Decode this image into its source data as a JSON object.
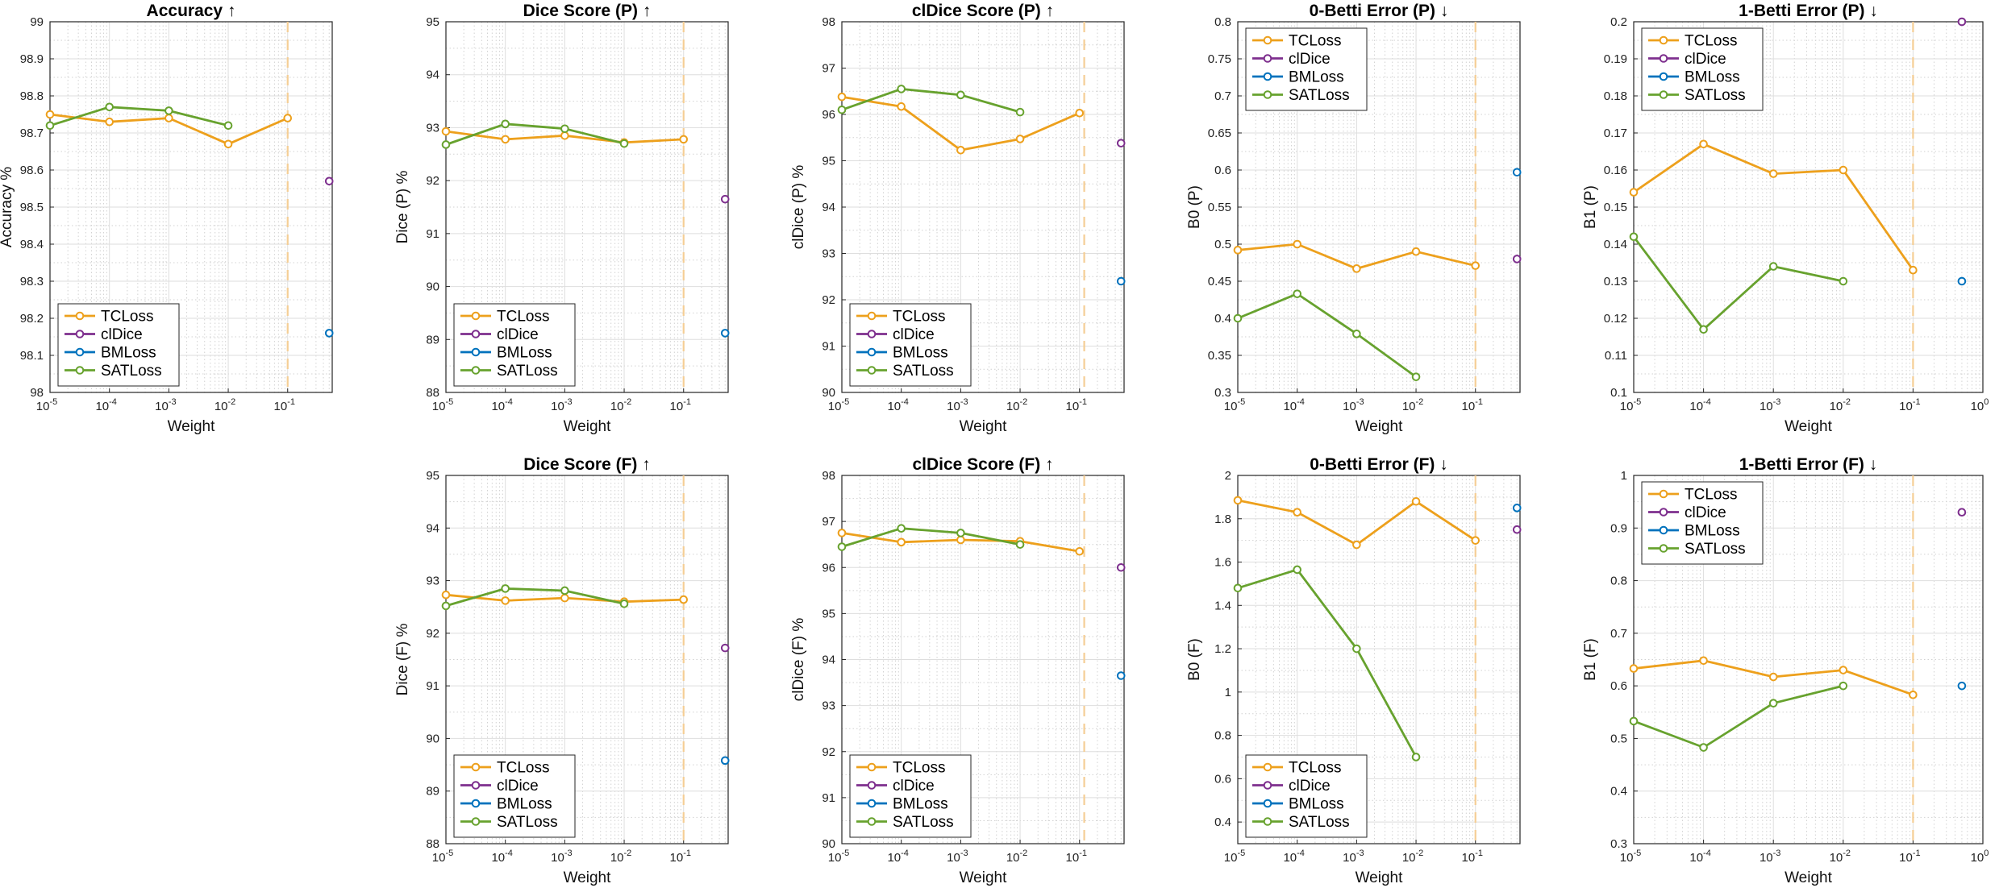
{
  "figure": {
    "series_colors": {
      "TCLoss": "#EDA01C",
      "clDice": "#7E2F8E",
      "BMLoss": "#0072BD",
      "SATLoss": "#67A22E"
    }
  },
  "chart_data": [
    {
      "type": "line",
      "title": "Accuracy ↑",
      "xlabel": "Weight",
      "ylabel": "Accuracy %",
      "xscale": "log",
      "xlim_exp": [
        -5,
        -0.25
      ],
      "x_tick_exponents": [
        -5,
        -4,
        -3,
        -2,
        -1
      ],
      "ylim": [
        98,
        99
      ],
      "yticks": [
        98,
        98.1,
        98.2,
        98.3,
        98.4,
        98.5,
        98.6,
        98.7,
        98.8,
        98.9,
        99
      ],
      "ytick_labels": [
        "98",
        "98.1",
        "98.2",
        "98.3",
        "98.4",
        "98.5",
        "98.6",
        "98.7",
        "98.8",
        "98.9",
        "99"
      ],
      "grid": true,
      "legend_position": "bottom-left",
      "legend": [
        "TCLoss",
        "clDice",
        "BMLoss",
        "SATLoss"
      ],
      "series": [
        {
          "name": "TCLoss",
          "x": [
            1e-05,
            0.0001,
            0.001,
            0.01,
            0.1
          ],
          "y": [
            98.75,
            98.73,
            98.74,
            98.67,
            98.74
          ]
        },
        {
          "name": "clDice",
          "x": [
            0.5
          ],
          "y": [
            98.57
          ]
        },
        {
          "name": "BMLoss",
          "x": [
            0.5
          ],
          "y": [
            98.16
          ]
        },
        {
          "name": "SATLoss",
          "x": [
            1e-05,
            0.0001,
            0.001,
            0.01
          ],
          "y": [
            98.72,
            98.77,
            98.76,
            98.72
          ]
        }
      ],
      "vline_x": 0.1
    },
    {
      "type": "line",
      "title": "Dice Score (P) ↑",
      "xlabel": "Weight",
      "ylabel": "Dice (P) %",
      "xscale": "log",
      "xlim_exp": [
        -5,
        -0.25
      ],
      "x_tick_exponents": [
        -5,
        -4,
        -3,
        -2,
        -1
      ],
      "ylim": [
        88,
        95
      ],
      "yticks": [
        88,
        89,
        90,
        91,
        92,
        93,
        94,
        95
      ],
      "ytick_labels": [
        "88",
        "89",
        "90",
        "91",
        "92",
        "93",
        "94",
        "95"
      ],
      "grid": true,
      "legend_position": "bottom-left",
      "legend": [
        "TCLoss",
        "clDice",
        "BMLoss",
        "SATLoss"
      ],
      "series": [
        {
          "name": "TCLoss",
          "x": [
            1e-05,
            0.0001,
            0.001,
            0.01,
            0.1
          ],
          "y": [
            92.93,
            92.78,
            92.85,
            92.72,
            92.78
          ]
        },
        {
          "name": "clDice",
          "x": [
            0.5
          ],
          "y": [
            91.65
          ]
        },
        {
          "name": "BMLoss",
          "x": [
            0.5
          ],
          "y": [
            89.12
          ]
        },
        {
          "name": "SATLoss",
          "x": [
            1e-05,
            0.0001,
            0.001,
            0.01
          ],
          "y": [
            92.68,
            93.07,
            92.98,
            92.7
          ]
        }
      ],
      "vline_x": 0.1
    },
    {
      "type": "line",
      "title": "clDice Score (P) ↑",
      "xlabel": "Weight",
      "ylabel": "clDice (P) %",
      "xscale": "log",
      "xlim_exp": [
        -5,
        -0.25
      ],
      "x_tick_exponents": [
        -5,
        -4,
        -3,
        -2,
        -1
      ],
      "ylim": [
        90,
        98
      ],
      "yticks": [
        90,
        91,
        92,
        93,
        94,
        95,
        96,
        97,
        98
      ],
      "ytick_labels": [
        "90",
        "91",
        "92",
        "93",
        "94",
        "95",
        "96",
        "97",
        "98"
      ],
      "grid": true,
      "legend_position": "bottom-left",
      "legend": [
        "TCLoss",
        "clDice",
        "BMLoss",
        "SATLoss"
      ],
      "series": [
        {
          "name": "TCLoss",
          "x": [
            1e-05,
            0.0001,
            0.001,
            0.01,
            0.1
          ],
          "y": [
            96.38,
            96.17,
            95.23,
            95.47,
            96.03
          ]
        },
        {
          "name": "clDice",
          "x": [
            0.5
          ],
          "y": [
            95.38
          ]
        },
        {
          "name": "BMLoss",
          "x": [
            0.5
          ],
          "y": [
            92.4
          ]
        },
        {
          "name": "SATLoss",
          "x": [
            1e-05,
            0.0001,
            0.001,
            0.01
          ],
          "y": [
            96.1,
            96.55,
            96.42,
            96.05
          ]
        }
      ],
      "vline_x": 0.12
    },
    {
      "type": "line",
      "title": "0-Betti Error (P) ↓",
      "xlabel": "Weight",
      "ylabel": "B0 (P)",
      "xscale": "log",
      "xlim_exp": [
        -5,
        -0.25
      ],
      "x_tick_exponents": [
        -5,
        -4,
        -3,
        -2,
        -1
      ],
      "ylim": [
        0.3,
        0.8
      ],
      "yticks": [
        0.3,
        0.35,
        0.4,
        0.45,
        0.5,
        0.55,
        0.6,
        0.65,
        0.7,
        0.75,
        0.8
      ],
      "ytick_labels": [
        "0.3",
        "0.35",
        "0.4",
        "0.45",
        "0.5",
        "0.55",
        "0.6",
        "0.65",
        "0.7",
        "0.75",
        "0.8"
      ],
      "grid": true,
      "legend_position": "top-left",
      "legend": [
        "TCLoss",
        "clDice",
        "BMLoss",
        "SATLoss"
      ],
      "series": [
        {
          "name": "TCLoss",
          "x": [
            1e-05,
            0.0001,
            0.001,
            0.01,
            0.1
          ],
          "y": [
            0.492,
            0.5,
            0.467,
            0.49,
            0.471
          ]
        },
        {
          "name": "clDice",
          "x": [
            0.5
          ],
          "y": [
            0.48
          ]
        },
        {
          "name": "BMLoss",
          "x": [
            0.5
          ],
          "y": [
            0.597
          ]
        },
        {
          "name": "SATLoss",
          "x": [
            1e-05,
            0.0001,
            0.001,
            0.01
          ],
          "y": [
            0.4,
            0.433,
            0.379,
            0.321
          ]
        }
      ],
      "vline_x": 0.1
    },
    {
      "type": "line",
      "title": "1-Betti Error (P) ↓",
      "xlabel": "Weight",
      "ylabel": "B1 (P)",
      "xscale": "log",
      "xlim_exp": [
        -5,
        0
      ],
      "x_tick_exponents": [
        -5,
        -4,
        -3,
        -2,
        -1,
        0
      ],
      "ylim": [
        0.1,
        0.2
      ],
      "yticks": [
        0.1,
        0.11,
        0.12,
        0.13,
        0.14,
        0.15,
        0.16,
        0.17,
        0.18,
        0.19,
        0.2
      ],
      "ytick_labels": [
        "0.1",
        "0.11",
        "0.12",
        "0.13",
        "0.14",
        "0.15",
        "0.16",
        "0.17",
        "0.18",
        "0.19",
        "0.2"
      ],
      "grid": true,
      "legend_position": "top-left",
      "legend": [
        "TCLoss",
        "clDice",
        "BMLoss",
        "SATLoss"
      ],
      "series": [
        {
          "name": "TCLoss",
          "x": [
            1e-05,
            0.0001,
            0.001,
            0.01,
            0.1
          ],
          "y": [
            0.154,
            0.167,
            0.159,
            0.16,
            0.133
          ]
        },
        {
          "name": "clDice",
          "x": [
            0.5
          ],
          "y": [
            0.2
          ]
        },
        {
          "name": "BMLoss",
          "x": [
            0.5
          ],
          "y": [
            0.13
          ]
        },
        {
          "name": "SATLoss",
          "x": [
            1e-05,
            0.0001,
            0.001,
            0.01
          ],
          "y": [
            0.142,
            0.117,
            0.134,
            0.13
          ]
        }
      ],
      "vline_x": 0.1
    },
    {
      "type": "line",
      "title": "Dice Score (F) ↑",
      "xlabel": "Weight",
      "ylabel": "Dice (F) %",
      "xscale": "log",
      "xlim_exp": [
        -5,
        -0.25
      ],
      "x_tick_exponents": [
        -5,
        -4,
        -3,
        -2,
        -1
      ],
      "ylim": [
        88,
        95
      ],
      "yticks": [
        88,
        89,
        90,
        91,
        92,
        93,
        94,
        95
      ],
      "ytick_labels": [
        "88",
        "89",
        "90",
        "91",
        "92",
        "93",
        "94",
        "95"
      ],
      "grid": true,
      "legend_position": "bottom-left",
      "legend": [
        "TCLoss",
        "clDice",
        "BMLoss",
        "SATLoss"
      ],
      "series": [
        {
          "name": "TCLoss",
          "x": [
            1e-05,
            0.0001,
            0.001,
            0.01,
            0.1
          ],
          "y": [
            92.73,
            92.62,
            92.67,
            92.6,
            92.64
          ]
        },
        {
          "name": "clDice",
          "x": [
            0.5
          ],
          "y": [
            91.72
          ]
        },
        {
          "name": "BMLoss",
          "x": [
            0.5
          ],
          "y": [
            89.58
          ]
        },
        {
          "name": "SATLoss",
          "x": [
            1e-05,
            0.0001,
            0.001,
            0.01
          ],
          "y": [
            92.52,
            92.85,
            92.81,
            92.56
          ]
        }
      ],
      "vline_x": 0.1
    },
    {
      "type": "line",
      "title": "clDice Score (F) ↑",
      "xlabel": "Weight",
      "ylabel": "clDice (F) %",
      "xscale": "log",
      "xlim_exp": [
        -5,
        -0.25
      ],
      "x_tick_exponents": [
        -5,
        -4,
        -3,
        -2,
        -1
      ],
      "ylim": [
        90,
        98
      ],
      "yticks": [
        90,
        91,
        92,
        93,
        94,
        95,
        96,
        97,
        98
      ],
      "ytick_labels": [
        "90",
        "91",
        "92",
        "93",
        "94",
        "95",
        "96",
        "97",
        "98"
      ],
      "grid": true,
      "legend_position": "bottom-left",
      "legend": [
        "TCLoss",
        "clDice",
        "BMLoss",
        "SATLoss"
      ],
      "series": [
        {
          "name": "TCLoss",
          "x": [
            1e-05,
            0.0001,
            0.001,
            0.01,
            0.1
          ],
          "y": [
            96.75,
            96.55,
            96.6,
            96.57,
            96.35
          ]
        },
        {
          "name": "clDice",
          "x": [
            0.5
          ],
          "y": [
            96
          ]
        },
        {
          "name": "BMLoss",
          "x": [
            0.5
          ],
          "y": [
            93.65
          ]
        },
        {
          "name": "SATLoss",
          "x": [
            1e-05,
            0.0001,
            0.001,
            0.01
          ],
          "y": [
            96.45,
            96.85,
            96.75,
            96.5
          ]
        }
      ],
      "vline_x": 0.12
    },
    {
      "type": "line",
      "title": "0-Betti Error (F) ↓",
      "xlabel": "Weight",
      "ylabel": "B0 (F)",
      "xscale": "log",
      "xlim_exp": [
        -5,
        -0.25
      ],
      "x_tick_exponents": [
        -5,
        -4,
        -3,
        -2,
        -1
      ],
      "ylim": [
        0.3,
        2
      ],
      "yticks": [
        0.4,
        0.6,
        0.8,
        1,
        1.2,
        1.4,
        1.6,
        1.8,
        2
      ],
      "ytick_labels": [
        "0.4",
        "0.6",
        "0.8",
        "1",
        "1.2",
        "1.4",
        "1.6",
        "1.8",
        "2"
      ],
      "grid": true,
      "legend_position": "bottom-left",
      "legend": [
        "TCLoss",
        "clDice",
        "BMLoss",
        "SATLoss"
      ],
      "series": [
        {
          "name": "TCLoss",
          "x": [
            1e-05,
            0.0001,
            0.001,
            0.01,
            0.1
          ],
          "y": [
            1.885,
            1.83,
            1.68,
            1.88,
            1.7
          ]
        },
        {
          "name": "clDice",
          "x": [
            0.5
          ],
          "y": [
            1.75
          ]
        },
        {
          "name": "BMLoss",
          "x": [
            0.5
          ],
          "y": [
            1.85
          ]
        },
        {
          "name": "SATLoss",
          "x": [
            1e-05,
            0.0001,
            0.001,
            0.01
          ],
          "y": [
            1.48,
            1.565,
            1.2,
            0.7
          ]
        }
      ],
      "vline_x": 0.1
    },
    {
      "type": "line",
      "title": "1-Betti Error (F) ↓",
      "xlabel": "Weight",
      "ylabel": "B1 (F)",
      "xscale": "log",
      "xlim_exp": [
        -5,
        0
      ],
      "x_tick_exponents": [
        -5,
        -4,
        -3,
        -2,
        -1,
        0
      ],
      "ylim": [
        0.3,
        1
      ],
      "yticks": [
        0.3,
        0.4,
        0.5,
        0.6,
        0.7,
        0.8,
        0.9,
        1
      ],
      "ytick_labels": [
        "0.3",
        "0.4",
        "0.5",
        "0.6",
        "0.7",
        "0.8",
        "0.9",
        "1"
      ],
      "grid": true,
      "legend_position": "top-left",
      "legend": [
        "TCLoss",
        "clDice",
        "BMLoss",
        "SATLoss"
      ],
      "series": [
        {
          "name": "TCLoss",
          "x": [
            1e-05,
            0.0001,
            0.001,
            0.01,
            0.1
          ],
          "y": [
            0.633,
            0.648,
            0.617,
            0.63,
            0.583
          ]
        },
        {
          "name": "clDice",
          "x": [
            0.5
          ],
          "y": [
            0.93
          ]
        },
        {
          "name": "BMLoss",
          "x": [
            0.5
          ],
          "y": [
            0.6
          ]
        },
        {
          "name": "SATLoss",
          "x": [
            1e-05,
            0.0001,
            0.001,
            0.01
          ],
          "y": [
            0.533,
            0.483,
            0.567,
            0.6
          ]
        }
      ],
      "vline_x": 0.1
    }
  ]
}
